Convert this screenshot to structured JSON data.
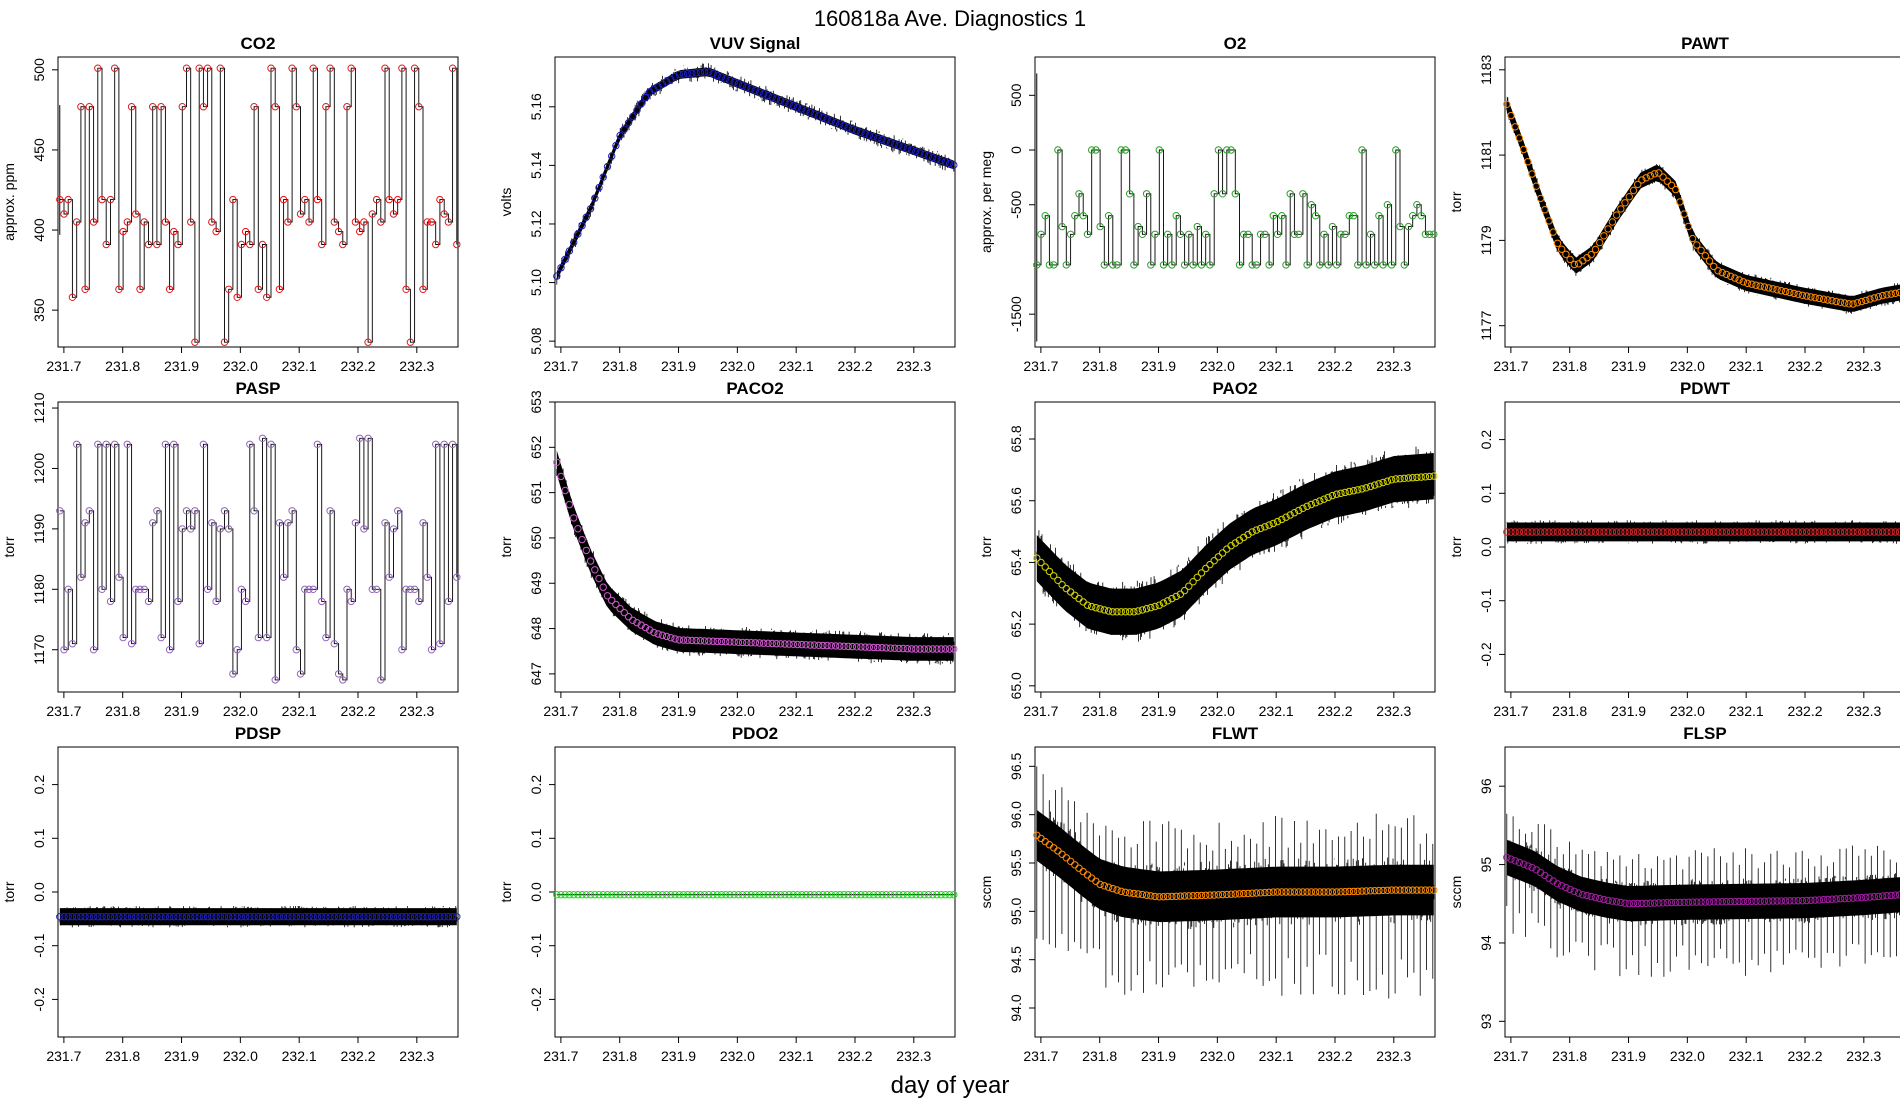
{
  "figure": {
    "title": "160818a   Ave. Diagnostics 1",
    "xlabel": "day of year"
  },
  "chart_data": [
    {
      "type": "line",
      "title": "CO2",
      "ylabel": "approx. ppm",
      "xlim": [
        231.69,
        232.37
      ],
      "ylim": [
        327,
        508
      ],
      "yticks": [
        350,
        400,
        450,
        500
      ],
      "xticks": [
        231.7,
        231.8,
        231.9,
        232.0,
        232.1,
        232.2,
        232.3
      ],
      "marker_color": "#e31a1c",
      "pattern": "co2",
      "seed": 1,
      "note": "points cycle among standard levels ~330, 358, 363, 391, 399, 405, 410, 419, 459, 477, 501"
    },
    {
      "type": "line",
      "title": "VUV Signal",
      "ylabel": "volts",
      "xlim": [
        231.69,
        232.37
      ],
      "ylim": [
        5.078,
        5.177
      ],
      "yticks": [
        5.08,
        5.1,
        5.12,
        5.14,
        5.16
      ],
      "xticks": [
        231.7,
        231.8,
        231.9,
        232.0,
        232.1,
        232.2,
        232.3
      ],
      "marker_color": "#1f1fbf",
      "pattern": "vuv",
      "seed": 2,
      "trend": [
        [
          231.69,
          5.101
        ],
        [
          231.75,
          5.125
        ],
        [
          231.8,
          5.15
        ],
        [
          231.85,
          5.165
        ],
        [
          231.9,
          5.171
        ],
        [
          231.95,
          5.172
        ],
        [
          232.0,
          5.168
        ],
        [
          232.1,
          5.16
        ],
        [
          232.2,
          5.152
        ],
        [
          232.3,
          5.145
        ],
        [
          232.37,
          5.14
        ]
      ]
    },
    {
      "type": "line",
      "title": "O2",
      "ylabel": "approx. per meg",
      "xlim": [
        231.69,
        232.37
      ],
      "ylim": [
        -1800,
        850
      ],
      "yticks": [
        -1500,
        -500,
        0,
        500
      ],
      "xticks": [
        231.7,
        231.8,
        231.9,
        232.0,
        232.1,
        232.2,
        232.3
      ],
      "marker_color": "#2ca02c",
      "pattern": "o2",
      "seed": 3,
      "note": "points cycle among levels ~-1050, -770, -700, -600, -500, -400, 0"
    },
    {
      "type": "line",
      "title": "PAWT",
      "ylabel": "torr",
      "xlim": [
        231.69,
        232.37
      ],
      "ylim": [
        1176.5,
        1183.3
      ],
      "yticks": [
        1177,
        1179,
        1181,
        1183
      ],
      "xticks": [
        231.7,
        231.8,
        231.9,
        232.0,
        232.1,
        232.2,
        232.3
      ],
      "marker_color": "#ff8c00",
      "pattern": "smooth",
      "seed": 4,
      "noise": 0.25,
      "trend": [
        [
          231.69,
          1182.3
        ],
        [
          231.72,
          1181.2
        ],
        [
          231.75,
          1180.0
        ],
        [
          231.78,
          1178.9
        ],
        [
          231.81,
          1178.4
        ],
        [
          231.84,
          1178.7
        ],
        [
          231.88,
          1179.6
        ],
        [
          231.92,
          1180.4
        ],
        [
          231.95,
          1180.6
        ],
        [
          231.98,
          1180.2
        ],
        [
          232.01,
          1179.0
        ],
        [
          232.05,
          1178.3
        ],
        [
          232.1,
          1178.0
        ],
        [
          232.2,
          1177.7
        ],
        [
          232.28,
          1177.5
        ],
        [
          232.33,
          1177.7
        ],
        [
          232.37,
          1177.8
        ]
      ]
    },
    {
      "type": "line",
      "title": "PASP",
      "ylabel": "torr",
      "xlim": [
        231.69,
        232.37
      ],
      "ylim": [
        1163,
        1211
      ],
      "yticks": [
        1170,
        1180,
        1190,
        1200,
        1210
      ],
      "xticks": [
        231.7,
        231.8,
        231.9,
        232.0,
        232.1,
        232.2,
        232.3
      ],
      "marker_color": "#9467bd",
      "pattern": "pasp",
      "seed": 5
    },
    {
      "type": "line",
      "title": "PACO2",
      "ylabel": "torr",
      "xlim": [
        231.69,
        232.37
      ],
      "ylim": [
        646.6,
        653.0
      ],
      "yticks": [
        647,
        648,
        649,
        650,
        651,
        652,
        653
      ],
      "xticks": [
        231.7,
        231.8,
        231.9,
        232.0,
        232.1,
        232.2,
        232.3
      ],
      "marker_color": "#d05ad0",
      "pattern": "smooth",
      "seed": 6,
      "noise": 0.35,
      "trend": [
        [
          231.69,
          651.8
        ],
        [
          231.72,
          650.5
        ],
        [
          231.75,
          649.5
        ],
        [
          231.78,
          648.7
        ],
        [
          231.82,
          648.2
        ],
        [
          231.86,
          647.9
        ],
        [
          231.9,
          647.75
        ],
        [
          232.0,
          647.7
        ],
        [
          232.1,
          647.65
        ],
        [
          232.2,
          647.6
        ],
        [
          232.3,
          647.55
        ],
        [
          232.37,
          647.55
        ]
      ]
    },
    {
      "type": "line",
      "title": "PAO2",
      "ylabel": "torr",
      "xlim": [
        231.69,
        232.37
      ],
      "ylim": [
        64.98,
        65.92
      ],
      "yticks": [
        65.0,
        65.2,
        65.4,
        65.6,
        65.8
      ],
      "xticks": [
        231.7,
        231.8,
        231.9,
        232.0,
        232.1,
        232.2,
        232.3
      ],
      "marker_color": "#d4d400",
      "pattern": "smooth",
      "seed": 7,
      "noise": 0.1,
      "trend": [
        [
          231.69,
          65.42
        ],
        [
          231.74,
          65.32
        ],
        [
          231.78,
          65.26
        ],
        [
          231.82,
          65.24
        ],
        [
          231.86,
          65.24
        ],
        [
          231.9,
          65.26
        ],
        [
          231.94,
          65.3
        ],
        [
          231.98,
          65.38
        ],
        [
          232.02,
          65.45
        ],
        [
          232.06,
          65.5
        ],
        [
          232.1,
          65.53
        ],
        [
          232.15,
          65.58
        ],
        [
          232.2,
          65.62
        ],
        [
          232.25,
          65.64
        ],
        [
          232.3,
          65.67
        ],
        [
          232.37,
          65.68
        ]
      ]
    },
    {
      "type": "line",
      "title": "PDWT",
      "ylabel": "torr",
      "xlim": [
        231.69,
        232.37
      ],
      "ylim": [
        -0.27,
        0.27
      ],
      "yticks": [
        -0.2,
        -0.1,
        0.0,
        0.1,
        0.2
      ],
      "xticks": [
        231.7,
        231.8,
        231.9,
        232.0,
        232.1,
        232.2,
        232.3
      ],
      "marker_color": "#d62728",
      "pattern": "flat",
      "seed": 8,
      "noise": 0.022,
      "trend": [
        [
          231.69,
          0.028
        ],
        [
          232.37,
          0.028
        ]
      ]
    },
    {
      "type": "line",
      "title": "PDSP",
      "ylabel": "torr",
      "xlim": [
        231.69,
        232.37
      ],
      "ylim": [
        -0.27,
        0.27
      ],
      "yticks": [
        -0.2,
        -0.1,
        0.0,
        0.1,
        0.2
      ],
      "xticks": [
        231.7,
        231.8,
        231.9,
        232.0,
        232.1,
        232.2,
        232.3
      ],
      "marker_color": "#2020c0",
      "pattern": "flat",
      "seed": 9,
      "noise": 0.02,
      "trend": [
        [
          231.69,
          -0.046
        ],
        [
          232.37,
          -0.046
        ]
      ]
    },
    {
      "type": "line",
      "title": "PDO2",
      "ylabel": "torr",
      "xlim": [
        231.69,
        232.37
      ],
      "ylim": [
        -0.27,
        0.27
      ],
      "yticks": [
        -0.2,
        -0.1,
        0.0,
        0.1,
        0.2
      ],
      "xticks": [
        231.7,
        231.8,
        231.9,
        232.0,
        232.1,
        232.2,
        232.3
      ],
      "marker_color": "#1fd81f",
      "pattern": "const",
      "seed": 10,
      "trend": [
        [
          231.69,
          -0.005
        ],
        [
          232.37,
          -0.005
        ]
      ]
    },
    {
      "type": "line",
      "title": "FLWT",
      "ylabel": "sccm",
      "xlim": [
        231.69,
        232.37
      ],
      "ylim": [
        93.7,
        96.7
      ],
      "yticks": [
        94.0,
        94.5,
        95.0,
        95.5,
        96.0,
        96.5
      ],
      "xticks": [
        231.7,
        231.8,
        231.9,
        232.0,
        232.1,
        232.2,
        232.3
      ],
      "marker_color": "#ff8c00",
      "pattern": "flow",
      "seed": 11,
      "noise": 0.35,
      "trend": [
        [
          231.69,
          95.8
        ],
        [
          231.73,
          95.62
        ],
        [
          231.77,
          95.42
        ],
        [
          231.8,
          95.28
        ],
        [
          231.84,
          95.2
        ],
        [
          231.9,
          95.15
        ],
        [
          232.0,
          95.17
        ],
        [
          232.1,
          95.2
        ],
        [
          232.2,
          95.2
        ],
        [
          232.3,
          95.22
        ],
        [
          232.37,
          95.22
        ]
      ]
    },
    {
      "type": "line",
      "title": "FLSP",
      "ylabel": "sccm",
      "xlim": [
        231.69,
        232.37
      ],
      "ylim": [
        92.8,
        96.5
      ],
      "yticks": [
        93.0,
        94.0,
        95.0,
        96.0
      ],
      "xticks": [
        231.7,
        231.8,
        231.9,
        232.0,
        232.1,
        232.2,
        232.3
      ],
      "marker_color": "#a020a0",
      "pattern": "flow",
      "seed": 12,
      "noise": 0.3,
      "trend": [
        [
          231.69,
          95.1
        ],
        [
          231.74,
          94.95
        ],
        [
          231.78,
          94.75
        ],
        [
          231.82,
          94.62
        ],
        [
          231.86,
          94.55
        ],
        [
          231.9,
          94.5
        ],
        [
          232.0,
          94.52
        ],
        [
          232.1,
          94.53
        ],
        [
          232.2,
          94.54
        ],
        [
          232.3,
          94.58
        ],
        [
          232.37,
          94.62
        ]
      ]
    }
  ]
}
